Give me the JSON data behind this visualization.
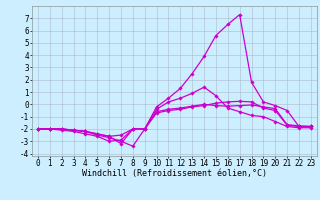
{
  "background_color": "#cceeff",
  "grid_color": "#aabbcc",
  "line_color": "#cc00cc",
  "marker": "D",
  "markersize": 1.8,
  "linewidth": 0.9,
  "xlabel": "Windchill (Refroidissement éolien,°C)",
  "xlabel_fontsize": 6,
  "tick_fontsize": 5.5,
  "xlim": [
    -0.5,
    23.5
  ],
  "ylim": [
    -4.2,
    8.0
  ],
  "xticks": [
    0,
    1,
    2,
    3,
    4,
    5,
    6,
    7,
    8,
    9,
    10,
    11,
    12,
    13,
    14,
    15,
    16,
    17,
    18,
    19,
    20,
    21,
    22,
    23
  ],
  "yticks": [
    -4,
    -3,
    -2,
    -1,
    0,
    1,
    2,
    3,
    4,
    5,
    6,
    7
  ],
  "c1_y": [
    -2.0,
    -2.0,
    -2.0,
    -2.1,
    -2.2,
    -2.5,
    -2.7,
    -3.0,
    -3.4,
    -2.0,
    -0.2,
    0.5,
    1.3,
    2.5,
    3.9,
    5.6,
    6.5,
    7.3,
    1.8,
    0.2,
    -0.1,
    -0.5,
    -1.8,
    -1.8
  ],
  "c2_y": [
    -2.0,
    -2.0,
    -2.0,
    -2.1,
    -2.2,
    -2.4,
    -2.6,
    -3.2,
    -2.0,
    -2.0,
    -0.4,
    0.2,
    0.5,
    0.9,
    1.4,
    0.7,
    -0.3,
    -0.6,
    -0.9,
    -1.0,
    -1.4,
    -1.8,
    -1.9,
    -1.9
  ],
  "c3_y": [
    -2.0,
    -2.0,
    -2.1,
    -2.2,
    -2.4,
    -2.6,
    -3.0,
    -2.9,
    -2.0,
    -2.0,
    -0.7,
    -0.5,
    -0.4,
    -0.2,
    -0.1,
    0.1,
    0.2,
    0.25,
    0.2,
    -0.3,
    -0.5,
    -1.7,
    -1.8,
    -1.8
  ],
  "c4_y": [
    -2.0,
    -2.0,
    -2.0,
    -2.1,
    -2.2,
    -2.4,
    -2.6,
    -2.5,
    -2.0,
    -2.0,
    -0.6,
    -0.4,
    -0.3,
    -0.15,
    0.0,
    -0.1,
    -0.15,
    -0.1,
    -0.05,
    -0.2,
    -0.35,
    -1.65,
    -1.75,
    -1.8
  ]
}
